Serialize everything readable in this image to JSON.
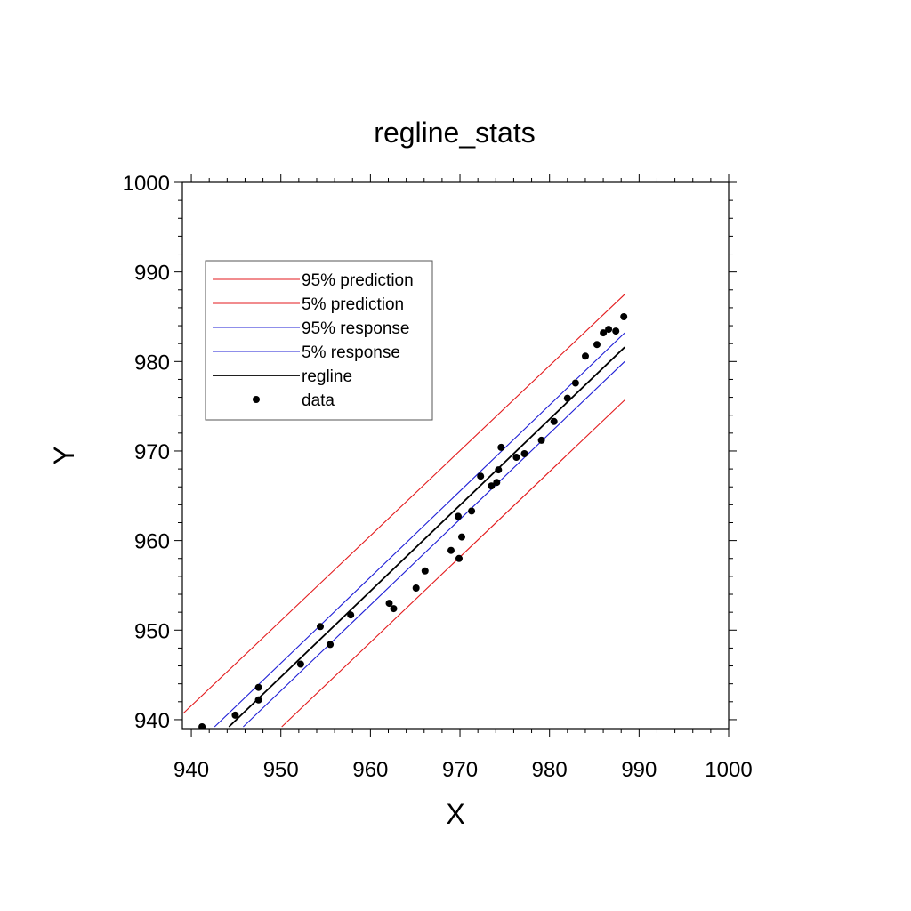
{
  "chart_data": {
    "type": "scatter",
    "title": "regline_stats",
    "xlabel": "X",
    "ylabel": "Y",
    "xlim": [
      939,
      1000
    ],
    "ylim": [
      939,
      1000
    ],
    "x_ticks": [
      "940",
      "950",
      "960",
      "970",
      "980",
      "990",
      "1000"
    ],
    "y_ticks": [
      "940",
      "950",
      "960",
      "970",
      "980",
      "990",
      "1000"
    ],
    "grid": false,
    "legend": {
      "placement": "top-left",
      "entries": [
        {
          "label": "95% prediction",
          "color": "#e31a1c",
          "kind": "line"
        },
        {
          "label": "5% prediction",
          "color": "#e31a1c",
          "kind": "line"
        },
        {
          "label": "95% response",
          "color": "#1f1fd6",
          "kind": "line"
        },
        {
          "label": "5% response",
          "color": "#1f1fd6",
          "kind": "line"
        },
        {
          "label": "regline",
          "color": "#000000",
          "kind": "line"
        },
        {
          "label": "data",
          "color": "#000000",
          "kind": "marker"
        }
      ]
    },
    "series": [
      {
        "name": "95% prediction",
        "color": "#e31a1c",
        "x": [
          939.1,
          988.4
        ],
        "y": [
          940.7,
          987.5
        ]
      },
      {
        "name": "5% prediction",
        "color": "#e31a1c",
        "x": [
          950.1,
          988.4
        ],
        "y": [
          939.2,
          975.7
        ]
      },
      {
        "name": "95% response",
        "color": "#1f1fd6",
        "x": [
          942.6,
          988.4
        ],
        "y": [
          939.2,
          983.2
        ]
      },
      {
        "name": "5% response",
        "color": "#1f1fd6",
        "x": [
          945.8,
          988.4
        ],
        "y": [
          939.2,
          980.0
        ]
      },
      {
        "name": "regline",
        "color": "#000000",
        "x": [
          944.2,
          988.4
        ],
        "y": [
          939.2,
          981.6
        ]
      },
      {
        "name": "data",
        "color": "#000000",
        "x": [
          941.2,
          944.9,
          947.5,
          947.5,
          952.2,
          954.4,
          955.5,
          957.8,
          962.1,
          962.6,
          965.1,
          966.1,
          969.0,
          969.8,
          969.9,
          970.2,
          971.3,
          972.3,
          973.5,
          974.1,
          974.3,
          974.6,
          976.3,
          977.2,
          979.1,
          980.5,
          982.0,
          982.9,
          984.0,
          985.3,
          986.0,
          986.6,
          987.4,
          988.3
        ],
        "y": [
          939.2,
          940.5,
          942.2,
          943.6,
          946.2,
          950.4,
          948.4,
          951.7,
          953.0,
          952.4,
          954.7,
          956.6,
          958.9,
          962.7,
          958.0,
          960.4,
          963.3,
          967.2,
          966.1,
          966.5,
          967.9,
          970.4,
          969.3,
          969.7,
          971.2,
          973.3,
          975.9,
          977.6,
          980.6,
          981.9,
          983.2,
          983.6,
          983.4,
          985.0
        ]
      }
    ]
  }
}
